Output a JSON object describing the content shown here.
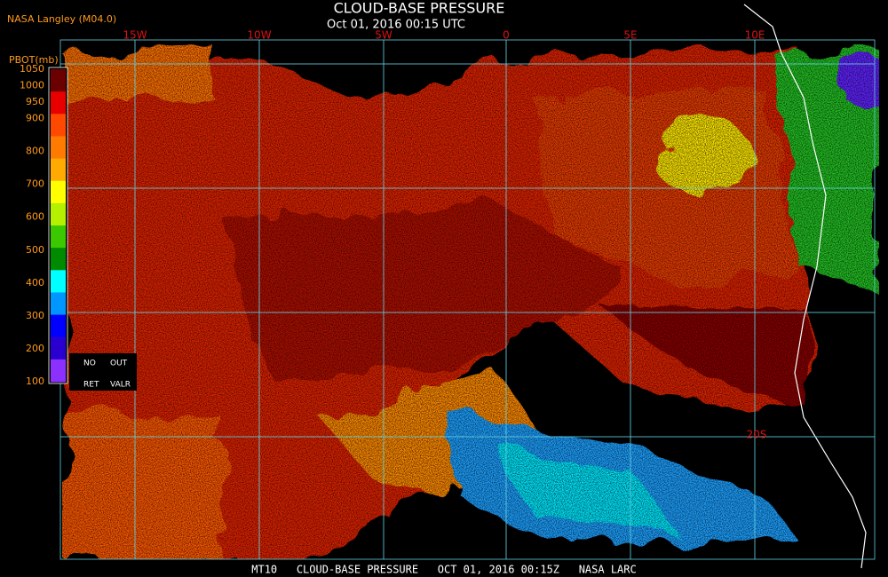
{
  "header": {
    "title": "CLOUD-BASE PRESSURE",
    "subtitle": "Oct 01, 2016 00:15 UTC",
    "source": "NASA Langley (M04.0)"
  },
  "legend": {
    "label": "PBOT(mb)",
    "ticks": [
      1050,
      1000,
      950,
      900,
      800,
      700,
      600,
      500,
      400,
      300,
      200,
      100
    ],
    "colors": [
      "#6b0000",
      "#e80000",
      "#ff4800",
      "#ff7a00",
      "#ffaa00",
      "#ffff00",
      "#b4f000",
      "#3cc800",
      "#008a00",
      "#00ffff",
      "#0096ff",
      "#0000ff",
      "#2a00d0",
      "#8c30ff"
    ],
    "no": "NO",
    "out": "OUT",
    "ret": "RET",
    "valr": "VALR"
  },
  "map": {
    "lon_labels": [
      "15W",
      "10W",
      "5W",
      "0",
      "5E",
      "10E"
    ],
    "lat_labels": [
      "20S"
    ]
  },
  "footer": "MT10   CLOUD-BASE PRESSURE   OCT 01, 2016 00:15Z   NASA LARC"
}
